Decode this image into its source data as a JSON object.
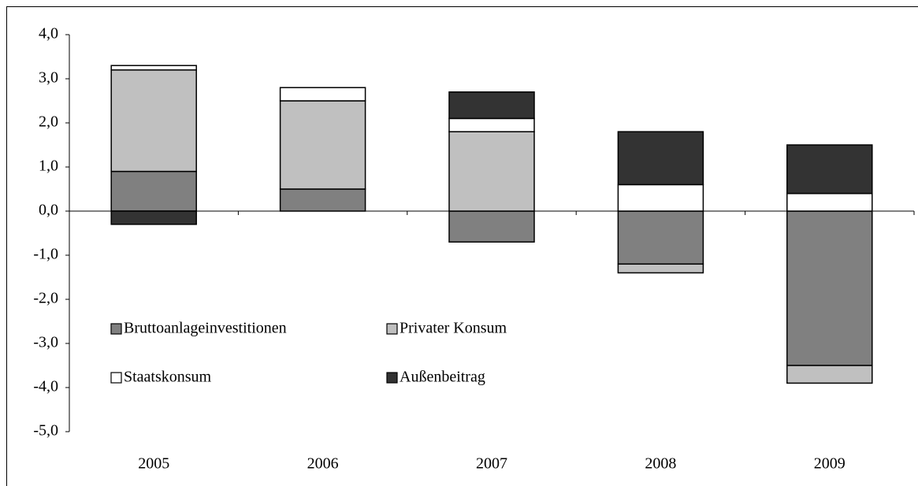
{
  "chart_data": {
    "type": "stacked_bar",
    "categories": [
      "2005",
      "2006",
      "2007",
      "2008",
      "2009"
    ],
    "series": [
      {
        "name": "Bruttoanlageinvestitionen",
        "color": "#808080",
        "values": [
          0.9,
          0.5,
          -0.7,
          -1.2,
          -3.5
        ]
      },
      {
        "name": "Privater Konsum",
        "color": "#c0c0c0",
        "values": [
          2.3,
          2.0,
          1.8,
          -0.2,
          -0.4
        ]
      },
      {
        "name": "Staatskonsum",
        "color": "#ffffff",
        "values": [
          0.1,
          0.3,
          0.3,
          0.6,
          0.4
        ]
      },
      {
        "name": "Außenbeitrag",
        "color": "#333333",
        "values": [
          -0.3,
          0,
          0.6,
          1.2,
          1.1
        ]
      }
    ],
    "ylim": [
      -5,
      4
    ],
    "yticks": [
      {
        "value": -5,
        "label": "-5,0"
      },
      {
        "value": -4,
        "label": "-4,0"
      },
      {
        "value": -3,
        "label": "-3,0"
      },
      {
        "value": -2,
        "label": "-2,0"
      },
      {
        "value": -1,
        "label": "-1,0"
      },
      {
        "value": 0,
        "label": "0,0"
      },
      {
        "value": 1,
        "label": "1,0"
      },
      {
        "value": 2,
        "label": "2,0"
      },
      {
        "value": 3,
        "label": "3,0"
      },
      {
        "value": 4,
        "label": "4,0"
      }
    ],
    "grid": false
  }
}
